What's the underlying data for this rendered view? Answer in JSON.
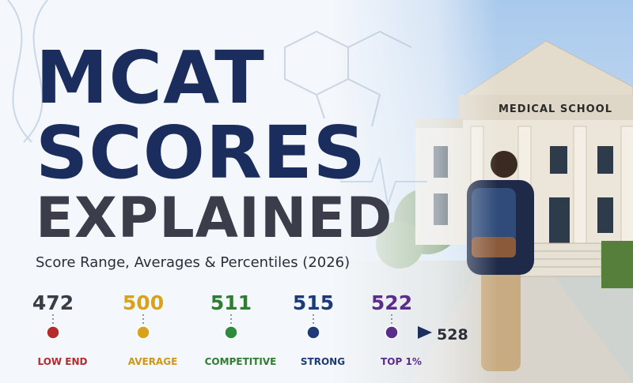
{
  "title_lines": [
    "MCAT",
    "SCORES",
    "EXPLAINED"
  ],
  "subtitle": "Score Range, Averages & Percentiles (2026)",
  "sign": "MEDICAL SCHOOL",
  "scale": {
    "points": [
      {
        "score": 472,
        "label": "LOW END"
      },
      {
        "score": 500,
        "label": "AVERAGE"
      },
      {
        "score": 511,
        "label": "COMPETITIVE"
      },
      {
        "score": 515,
        "label": "STRONG"
      },
      {
        "score": 522,
        "label": "TOP 1%"
      }
    ],
    "end": 528
  }
}
